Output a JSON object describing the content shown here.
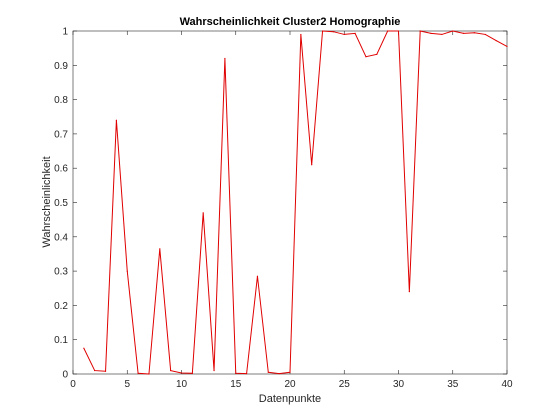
{
  "chart_data": {
    "type": "line",
    "title": "Wahrscheinlichkeit Cluster2 Homographie",
    "xlabel": "Datenpunkte",
    "ylabel": "Wahrscheinlichkeit",
    "xlim": [
      0,
      40
    ],
    "ylim": [
      0,
      1
    ],
    "xticks": [
      "0",
      "5",
      "10",
      "15",
      "20",
      "25",
      "30",
      "35",
      "40"
    ],
    "yticks": [
      "0",
      "0.1",
      "0.2",
      "0.3",
      "0.4",
      "0.5",
      "0.6",
      "0.7",
      "0.8",
      "0.9",
      "1"
    ],
    "grid": false,
    "line_color": "#e00000",
    "series": [
      {
        "x": [
          1,
          2,
          3,
          4,
          5,
          6,
          7,
          8,
          9,
          10,
          11,
          12,
          13,
          14,
          15,
          16,
          17,
          18,
          19,
          20,
          21,
          22,
          23,
          24,
          25,
          26,
          27,
          28,
          29,
          30,
          31,
          32,
          33,
          34,
          35,
          36,
          37,
          38,
          39,
          40
        ],
        "values": [
          0.075,
          0.01,
          0.008,
          0.74,
          0.3,
          0.002,
          0.0,
          0.365,
          0.01,
          0.003,
          0.002,
          0.47,
          0.01,
          0.92,
          0.002,
          0.001,
          0.285,
          0.005,
          0.001,
          0.005,
          0.99,
          0.61,
          1.0,
          0.998,
          0.99,
          0.993,
          0.925,
          0.932,
          1.0,
          1.0,
          0.24,
          1.0,
          0.993,
          0.99,
          1.0,
          0.993,
          0.995,
          0.99,
          0.972,
          0.955
        ]
      }
    ]
  }
}
